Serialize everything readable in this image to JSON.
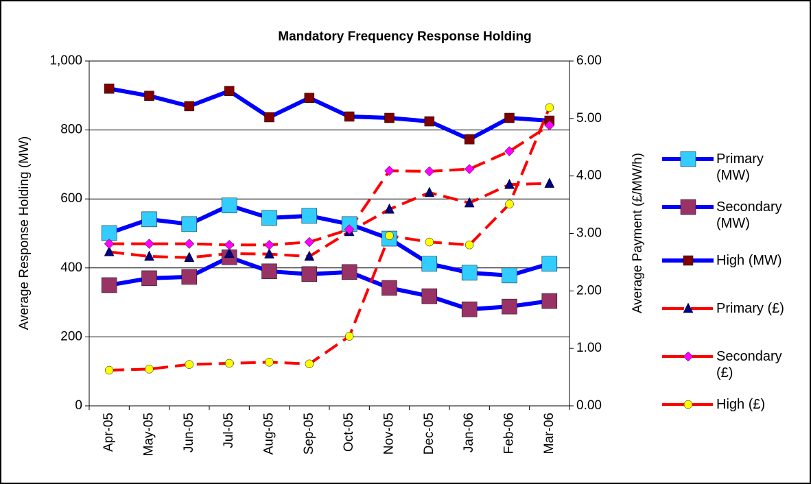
{
  "chart_data": {
    "type": "line",
    "title": "Mandatory Frequency Response Holding",
    "ylabel": "Average Response Holding (MW)",
    "y2label": "Average Payment (£/MW/h)",
    "categories": [
      "Apr-05",
      "May-05",
      "Jun-05",
      "Jul-05",
      "Aug-05",
      "Sep-05",
      "Oct-05",
      "Nov-05",
      "Dec-05",
      "Jan-06",
      "Feb-06",
      "Mar-06"
    ],
    "ylim": [
      0,
      1000
    ],
    "yticks": [
      0,
      200,
      400,
      600,
      800,
      {
        "value": 1000,
        "label": "1,000"
      }
    ],
    "y2lim": [
      0,
      6
    ],
    "y2ticks": [
      {
        "value": 0,
        "label": "0.00"
      },
      {
        "value": 1,
        "label": "1.00"
      },
      {
        "value": 2,
        "label": "2.00"
      },
      {
        "value": 3,
        "label": "3.00"
      },
      {
        "value": 4,
        "label": "4.00"
      },
      {
        "value": 5,
        "label": "5.00"
      },
      {
        "value": 6,
        "label": "6.00"
      }
    ],
    "grid": true,
    "legend": "right",
    "series": [
      {
        "name": "Primary (MW)",
        "color": "#0000ff",
        "marker": "square",
        "marker_color": "#33ccff",
        "values": [
          501,
          541,
          527,
          581,
          545,
          551,
          527,
          485,
          412,
          386,
          378,
          412
        ]
      },
      {
        "name": "Secondary (MW)",
        "color": "#0000ff",
        "marker": "square",
        "marker_color": "#993366",
        "values": [
          350,
          370,
          374,
          431,
          390,
          382,
          388,
          342,
          318,
          280,
          288,
          304
        ]
      },
      {
        "name": "High (MW)",
        "color": "#0000ff",
        "marker": "square-small",
        "marker_color": "#800000",
        "values": [
          920,
          899,
          869,
          913,
          837,
          893,
          839,
          835,
          825,
          773,
          835,
          827
        ]
      },
      {
        "name": "Primary (£)",
        "color": "#ff0000",
        "marker": "triangle",
        "marker_color": "#000080",
        "axis": "y2",
        "values": [
          2.68,
          2.6,
          2.58,
          2.65,
          2.64,
          2.6,
          3.03,
          3.42,
          3.71,
          3.53,
          3.85,
          3.87
        ]
      },
      {
        "name": "Secondary (£)",
        "color": "#ff0000",
        "marker": "diamond",
        "marker_color": "#ff00ff",
        "axis": "y2",
        "values": [
          2.82,
          2.82,
          2.82,
          2.8,
          2.8,
          2.85,
          3.07,
          4.09,
          4.08,
          4.12,
          4.43,
          4.88
        ]
      },
      {
        "name": "High (£)",
        "color": "#ff0000",
        "marker": "circle",
        "marker_color": "#ffff00",
        "axis": "y2",
        "values": [
          0.62,
          0.64,
          0.72,
          0.74,
          0.76,
          0.73,
          1.21,
          2.96,
          2.85,
          2.8,
          3.51,
          5.19
        ]
      }
    ]
  }
}
